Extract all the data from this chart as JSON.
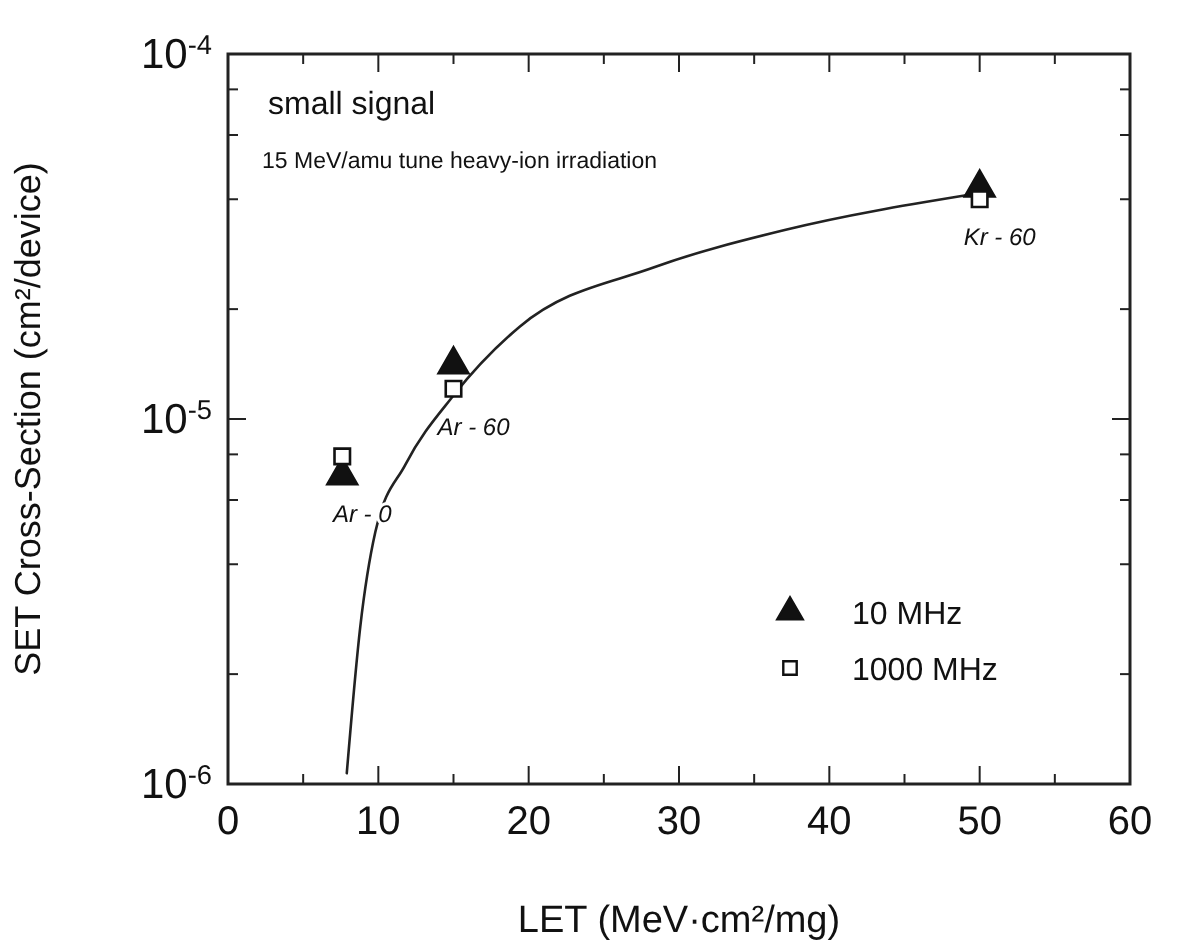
{
  "chart_data": {
    "type": "scatter",
    "title": "small signal",
    "subtitle": "15 MeV/amu tune heavy-ion irradiation",
    "xlabel": "LET (MeV·cm²/mg)",
    "ylabel": "SET Cross-Section (cm²/device)",
    "log": "y",
    "xlim": [
      0,
      60
    ],
    "ylim": [
      1e-06,
      0.0001
    ],
    "xticks": [
      0,
      {
        "value": 5,
        "label": null
      },
      10,
      {
        "value": 15,
        "label": null
      },
      20,
      {
        "value": 25,
        "label": null
      },
      30,
      {
        "value": 35,
        "label": null
      },
      40,
      {
        "value": 45,
        "label": null
      },
      50,
      {
        "value": 55,
        "label": null
      },
      60
    ],
    "yticks": [
      {
        "value": 1e-06,
        "label": "10$^{-6}$"
      },
      {
        "value": 2e-06,
        "label": null
      },
      {
        "value": 4e-06,
        "label": null
      },
      {
        "value": 6e-06,
        "label": null
      },
      {
        "value": 8e-06,
        "label": null
      },
      {
        "value": 1e-05,
        "label": "10$^{-5}$"
      },
      {
        "value": 2e-05,
        "label": null
      },
      {
        "value": 4e-05,
        "label": null
      },
      {
        "value": 6e-05,
        "label": null
      },
      {
        "value": 8e-05,
        "label": null
      },
      {
        "value": 0.0001,
        "label": "10$^{-4}$"
      }
    ],
    "legend": "bottom right",
    "grid": false,
    "series": [
      {
        "type": "line",
        "color": "#222222",
        "line_style": "solid",
        "marker": "none",
        "x": [
          7.9,
          8.8,
          9.8,
          11.8,
          15,
          19.4,
          28.3,
          37.1,
          49.1
        ],
        "values": [
          1.07e-06,
          2.7e-06,
          4.9e-06,
          7.5e-06,
          1.16e-05,
          1.79e-05,
          2.6e-05,
          3.3e-05,
          4.1e-05
        ]
      },
      {
        "name": "10 MHz",
        "color": "#111111",
        "marker": "triangle",
        "x": [
          7.6,
          15,
          50
        ],
        "values": [
          7e-06,
          1.41e-05,
          4.3e-05
        ]
      },
      {
        "name": "1000 MHz",
        "color": "#111111",
        "marker": "square",
        "x": [
          7.6,
          15,
          50
        ],
        "values": [
          7.9e-06,
          1.21e-05,
          4e-05
        ]
      }
    ],
    "annotations": [
      {
        "text": "Ar - 0",
        "x": 7.6,
        "y": 7e-06
      },
      {
        "text": "Ar - 60",
        "x": 15,
        "y": 1.21e-05
      },
      {
        "text": "Kr - 60",
        "x": 50,
        "y": 4e-05
      }
    ]
  }
}
